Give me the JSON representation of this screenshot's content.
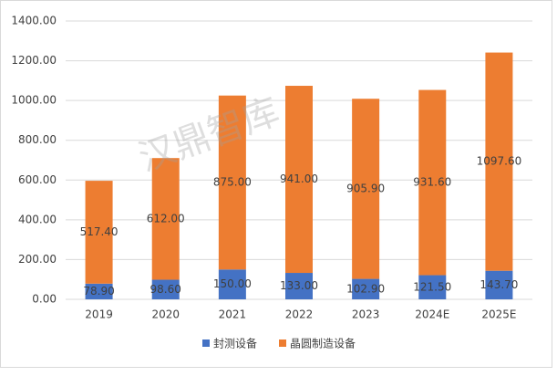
{
  "chart_data": {
    "type": "stacked_bar",
    "watermark": "汉鼎智库",
    "categories": [
      "2019",
      "2020",
      "2021",
      "2022",
      "2023",
      "2024E",
      "2025E"
    ],
    "series": [
      {
        "name": "封测设备",
        "color": "#4472c4",
        "values": [
          78.9,
          98.6,
          150,
          133,
          102.9,
          121.5,
          143.7
        ],
        "value_labels": [
          "78.90",
          "98.60",
          "150.00",
          "133.00",
          "102.90",
          "121.50",
          "143.70"
        ]
      },
      {
        "name": "晶圆制造设备",
        "color": "#ed7d31",
        "values": [
          517.4,
          612,
          875,
          941,
          905.9,
          931.6,
          1097.6
        ],
        "value_labels": [
          "517.40",
          "612.00",
          "875.00",
          "941.00",
          "905.90",
          "931.60",
          "1097.60"
        ]
      }
    ],
    "ylim": [
      0,
      1400
    ],
    "yticks": [
      {
        "value": 0,
        "label": "0.00"
      },
      {
        "value": 200,
        "label": "200.00"
      },
      {
        "value": 400,
        "label": "400.00"
      },
      {
        "value": 600,
        "label": "600.00"
      },
      {
        "value": 800,
        "label": "800.00"
      },
      {
        "value": 1000,
        "label": "1000.00"
      },
      {
        "value": 1200,
        "label": "1200.00"
      },
      {
        "value": 1400,
        "label": "1400.00"
      }
    ],
    "grid": true,
    "legend": "bottom"
  }
}
